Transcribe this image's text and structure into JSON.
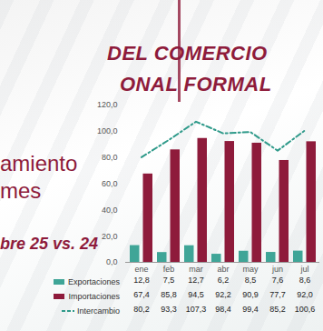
{
  "header": {
    "title_lines": [
      "DEL COMERCIO",
      "ONAL FORMAL"
    ],
    "subtitle_lines": [
      "amiento",
      "mes"
    ],
    "period": "bre 25 vs. 24"
  },
  "chart_data": {
    "type": "bar",
    "categories": [
      "ene",
      "feb",
      "mar",
      "abr",
      "may",
      "jun",
      "jul"
    ],
    "series": [
      {
        "name": "Exportaciones",
        "type": "bar",
        "color": "#3fa597",
        "values": [
          12.8,
          7.5,
          12.7,
          6.2,
          8.5,
          7.6,
          8.6
        ],
        "value_labels": [
          "12,8",
          "7,5",
          "12,7",
          "6,2",
          "8,5",
          "7,6",
          "8,6"
        ]
      },
      {
        "name": "Importaciones",
        "type": "bar",
        "color": "#8e1b3b",
        "values": [
          67.4,
          85.8,
          94.5,
          92.2,
          90.9,
          77.7,
          92.0
        ],
        "value_labels": [
          "67,4",
          "85,8",
          "94,5",
          "92,2",
          "90,9",
          "77,7",
          "92,0"
        ]
      },
      {
        "name": "Intercambio",
        "type": "line",
        "line_style": "dashed",
        "color": "#2f9a8a",
        "values": [
          80.2,
          93.3,
          107.3,
          98.4,
          99.4,
          85.2,
          100.6
        ],
        "value_labels": [
          "80,2",
          "93,3",
          "107,3",
          "98,4",
          "99,4",
          "85,2",
          "100,6"
        ]
      }
    ],
    "ylim": [
      0,
      120
    ],
    "yticks": [
      {
        "value": 0,
        "label": "0,0"
      },
      {
        "value": 20,
        "label": "20,0"
      },
      {
        "value": 40,
        "label": "40,0"
      },
      {
        "value": 60,
        "label": "60,0"
      },
      {
        "value": 80,
        "label": "80,0"
      },
      {
        "value": 100,
        "label": "100,0"
      },
      {
        "value": 120,
        "label": "120,0"
      }
    ],
    "grid": false
  }
}
